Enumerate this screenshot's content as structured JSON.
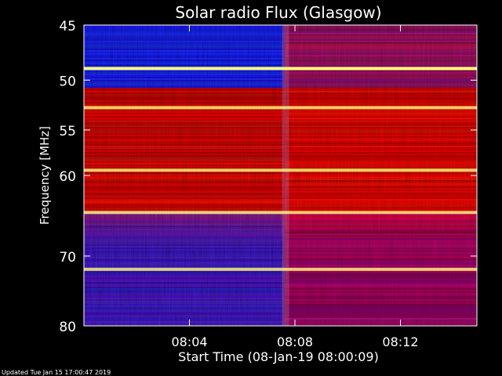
{
  "chart_data": {
    "type": "heatmap",
    "title": "Solar radio Flux (Glasgow)",
    "xlabel": "Start Time (08-Jan-19 08:00:09)",
    "ylabel": "Frequency [MHz]",
    "y_axis_scale": "log",
    "ylim": [
      45,
      80
    ],
    "y_ticks": [
      45,
      50,
      55,
      60,
      70,
      80
    ],
    "y_tick_labels": [
      "45",
      "50",
      "55",
      "60",
      "70",
      "80"
    ],
    "x_ticks_minutes": [
      4,
      8,
      12
    ],
    "x_tick_labels": [
      "08:04",
      "08:08",
      "08:12"
    ],
    "xlim_minutes": [
      0,
      14.9
    ],
    "event_time_minutes": 7.6,
    "colors": {
      "background": "#000000",
      "low": "#2020c0",
      "mid": "#c00000",
      "high": "#ffff80"
    },
    "bright_lines_mhz": [
      48.9,
      52.7,
      59.4,
      64.4,
      71.8
    ],
    "footer": "Updated Tue Jan 15 17:00:47 2019"
  }
}
